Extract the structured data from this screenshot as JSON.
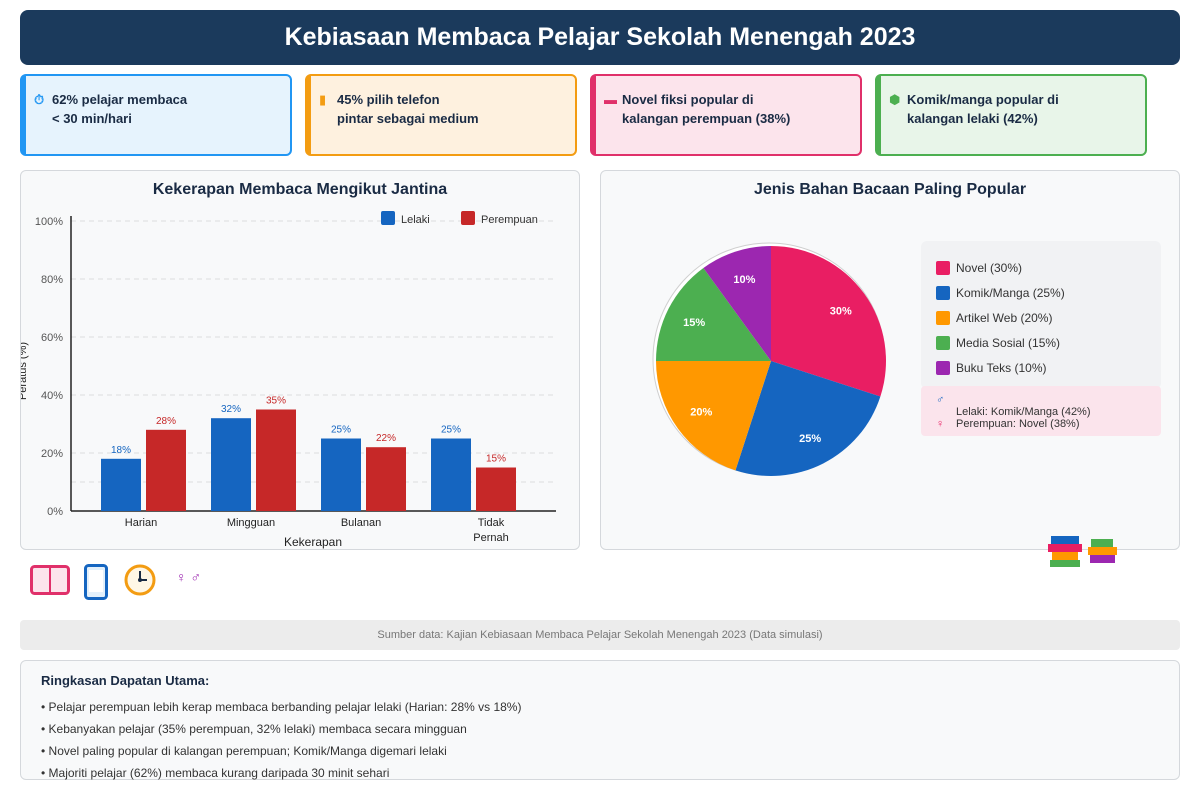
{
  "header": {
    "title": "Kebiasaan Membaca Pelajar Sekolah Menengah 2023"
  },
  "stats": [
    {
      "icon": "stopwatch-icon",
      "glyph": "⏱",
      "text": "62% pelajar membaca\n< 30 min/hari",
      "color": "#2196f3",
      "bg": "#e6f3fd"
    },
    {
      "icon": "phone-icon",
      "glyph": "▮",
      "text": "45% pilih telefon\npintar sebagai medium",
      "color": "#f39c12",
      "bg": "#fef1df"
    },
    {
      "icon": "book-icon",
      "glyph": "▬",
      "text": "Novel fiksi popular di\nkalangan perempuan (38%)",
      "color": "#e0306a",
      "bg": "#fce4ec"
    },
    {
      "icon": "hexagon-icon",
      "glyph": "⬢",
      "text": "Komik/manga popular di\nkalangan lelaki (42%)",
      "color": "#4caf50",
      "bg": "#e8f5e9"
    }
  ],
  "chart_data": [
    {
      "type": "bar",
      "title": "Kekerapan Membaca Mengikut Jantina",
      "xlabel": "Kekerapan",
      "ylabel": "Peratus (%)",
      "categories": [
        "Harian",
        "Mingguan",
        "Bulanan",
        "Tidak Pernah"
      ],
      "series": [
        {
          "name": "Lelaki",
          "values": [
            18,
            32,
            25,
            25
          ],
          "color": "#1565c0"
        },
        {
          "name": "Perempuan",
          "values": [
            28,
            35,
            22,
            15
          ],
          "color": "#c62828"
        }
      ],
      "ylim": [
        0,
        100
      ],
      "yticks": [
        0,
        20,
        40,
        60,
        80,
        100
      ],
      "ytick_labels": [
        "0%",
        "20%",
        "40%",
        "60%",
        "80%",
        "100%"
      ],
      "legend": "top-right",
      "grid": true
    },
    {
      "type": "pie",
      "title": "Jenis Bahan Bacaan Paling Popular",
      "slices": [
        {
          "label": "Novel",
          "value": 30,
          "color": "#e91e63"
        },
        {
          "label": "Komik/Manga",
          "value": 25,
          "color": "#1565c0"
        },
        {
          "label": "Artikel Web",
          "value": 20,
          "color": "#ff9800"
        },
        {
          "label": "Media Sosial",
          "value": 15,
          "color": "#4caf50"
        },
        {
          "label": "Buku Teks",
          "value": 10,
          "color": "#9c27b0"
        }
      ],
      "legend_items": [
        "Novel (30%)",
        "Komik/Manga (25%)",
        "Artikel Web (20%)",
        "Media Sosial (15%)",
        "Buku Teks (10%)"
      ],
      "gender_notes": {
        "male_symbol": "♂",
        "male_text": "Lelaki: Komik/Manga (42%)",
        "female_symbol": "♀",
        "female_text": "Perempuan: Novel (38%)"
      }
    }
  ],
  "decor": {
    "gender_symbols": "♀ ♂"
  },
  "source": "Sumber data: Kajian Kebiasaan Membaca Pelajar Sekolah Menengah 2023 (Data simulasi)",
  "summary": {
    "title": "Ringkasan Dapatan Utama:",
    "items": [
      "• Pelajar perempuan lebih kerap membaca berbanding pelajar lelaki (Harian: 28% vs 18%)",
      "• Kebanyakan pelajar (35% perempuan, 32% lelaki) membaca secara mingguan",
      "• Novel paling popular di kalangan perempuan; Komik/Manga digemari lelaki",
      "• Majoriti pelajar (62%) membaca kurang daripada 30 minit sehari"
    ]
  }
}
